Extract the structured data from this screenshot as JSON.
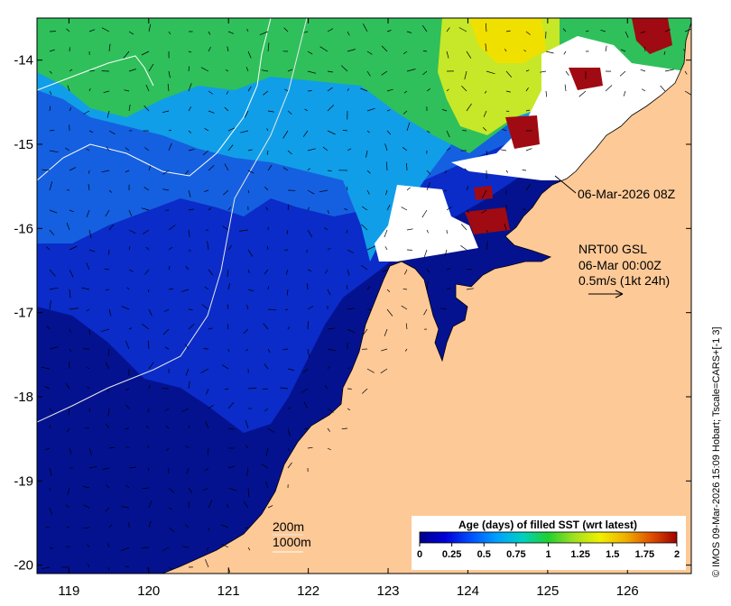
{
  "map": {
    "x_ticks": [
      "119",
      "120",
      "121",
      "122",
      "123",
      "124",
      "125",
      "126"
    ],
    "y_ticks": [
      "-14",
      "-15",
      "-16",
      "-17",
      "-18",
      "-19",
      "-20"
    ],
    "x_tick_values": [
      119,
      120,
      121,
      122,
      123,
      124,
      125,
      126
    ],
    "y_tick_values": [
      -14,
      -15,
      -16,
      -17,
      -18,
      -19,
      -20
    ],
    "lon_range": [
      118.6,
      126.8
    ],
    "lat_range": [
      -20.1,
      -13.5
    ]
  },
  "annotations": {
    "date_label": "06-Mar-2026 08Z",
    "current_title": "NRT00 GSL",
    "current_time": "06-Mar 00:00Z",
    "current_scale": "0.5m/s (1kt 24h)",
    "contour_200": "200m",
    "contour_1000": "1000m",
    "credit": "© IMOS 09-Mar-2026 15:09 Hobart; Tscale=CARS+[-1 3]"
  },
  "colorbar": {
    "title": "Age (days) of filled SST (wrt latest)",
    "tick_labels": [
      "0",
      "0.25",
      "0.5",
      "0.75",
      "1",
      "1.25",
      "1.5",
      "1.75",
      "2"
    ],
    "range": [
      0,
      2
    ],
    "colors": [
      "#00008b",
      "#0000d0",
      "#0050ff",
      "#00a8f0",
      "#00c8a0",
      "#30d020",
      "#a0e020",
      "#f0f000",
      "#f0a000",
      "#e05000",
      "#b00000"
    ]
  },
  "colors": {
    "land": "#fdc997",
    "cloud": "#ffffff",
    "age_0": "#05128f",
    "age_0_25": "#0b2cc8",
    "age_0_5": "#1560e0",
    "age_0_75": "#119ee8",
    "age_1": "#2fc05b",
    "age_1_25": "#c6e828",
    "age_2": "#a00a12"
  }
}
